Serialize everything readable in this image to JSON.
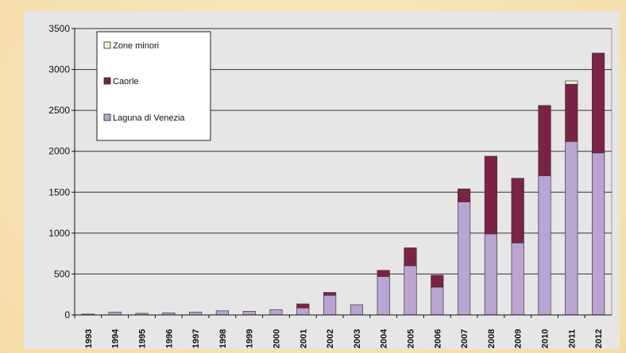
{
  "colors": {
    "page_background": "#f6e4b4",
    "plot_background": "#e6e6e6",
    "laguna": "#bba3d3",
    "caorle": "#7b2246",
    "zone_minori": "#f7f2cf",
    "bar_stroke": "#3a3a3a",
    "gridline": "#333333"
  },
  "chart_data": {
    "type": "bar",
    "stacked": true,
    "title": "",
    "xlabel": "",
    "ylabel": "",
    "ylim": [
      0,
      3500
    ],
    "y_ticks": [
      0,
      500,
      1000,
      1500,
      2000,
      2500,
      3000,
      3500
    ],
    "grid": true,
    "legend_position": "top-left",
    "categories": [
      "1993",
      "1994",
      "1995",
      "1996",
      "1997",
      "1998",
      "1999",
      "2000",
      "2001",
      "2002",
      "2003",
      "2004",
      "2005",
      "2006",
      "2007",
      "2008",
      "2009",
      "2010",
      "2011",
      "2012"
    ],
    "series": [
      {
        "name": "Laguna di Venezia",
        "color_key": "laguna",
        "values": [
          10,
          35,
          20,
          25,
          35,
          50,
          45,
          65,
          85,
          240,
          125,
          470,
          600,
          340,
          1380,
          990,
          880,
          1700,
          2120,
          1980
        ]
      },
      {
        "name": "Caorle",
        "color_key": "caorle",
        "values": [
          0,
          0,
          0,
          0,
          0,
          0,
          0,
          0,
          50,
          35,
          0,
          75,
          220,
          145,
          160,
          950,
          790,
          860,
          700,
          1220
        ]
      },
      {
        "name": "Zone minori",
        "color_key": "zone_minori",
        "values": [
          0,
          0,
          0,
          0,
          0,
          0,
          0,
          0,
          0,
          0,
          0,
          0,
          0,
          0,
          0,
          0,
          0,
          0,
          40,
          0
        ]
      }
    ],
    "legend_order": [
      "Zone minori",
      "Caorle",
      "Laguna di Venezia"
    ]
  }
}
